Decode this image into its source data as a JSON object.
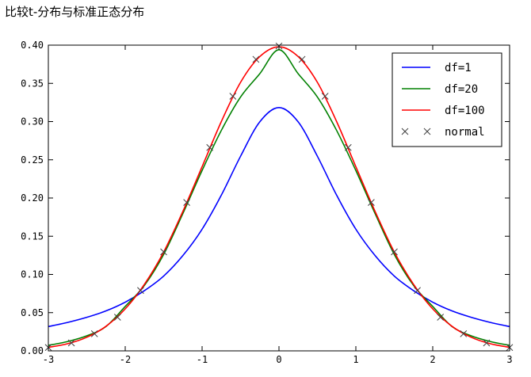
{
  "chart_data": {
    "type": "line",
    "title": "比较t-分布与标准正态分布",
    "xlabel": "",
    "ylabel": "",
    "xlim": [
      -3,
      3
    ],
    "ylim": [
      0,
      0.4
    ],
    "grid": false,
    "legend": "top-right",
    "xticks": [
      "-3",
      "-2",
      "-1",
      "0",
      "1",
      "2",
      "3"
    ],
    "yticks": [
      "0.00",
      "0.05",
      "0.10",
      "0.15",
      "0.20",
      "0.25",
      "0.30",
      "0.35",
      "0.40"
    ],
    "x": [
      -3.0,
      -2.75,
      -2.5,
      -2.25,
      -2.0,
      -1.75,
      -1.5,
      -1.25,
      -1.0,
      -0.75,
      -0.5,
      -0.25,
      0.0,
      0.25,
      0.5,
      0.75,
      1.0,
      1.25,
      1.5,
      1.75,
      2.0,
      2.25,
      2.5,
      2.75,
      3.0
    ],
    "series": [
      {
        "name": "df=1",
        "color": "#0000ff",
        "style": "line",
        "values": [
          0.0318,
          0.0372,
          0.0439,
          0.0523,
          0.0637,
          0.0788,
          0.0979,
          0.1247,
          0.1592,
          0.2037,
          0.2546,
          0.2996,
          0.3183,
          0.2996,
          0.2546,
          0.2037,
          0.1592,
          0.1247,
          0.0979,
          0.0788,
          0.0637,
          0.0523,
          0.0439,
          0.0372,
          0.0318
        ]
      },
      {
        "name": "df=20",
        "color": "#008000",
        "style": "line",
        "values": [
          0.0072,
          0.0122,
          0.0197,
          0.0319,
          0.0581,
          0.0857,
          0.1262,
          0.1797,
          0.236,
          0.2884,
          0.3321,
          0.3626,
          0.394,
          0.3626,
          0.3321,
          0.2884,
          0.236,
          0.1797,
          0.1262,
          0.0857,
          0.0581,
          0.0319,
          0.0197,
          0.0122,
          0.0072
        ]
      },
      {
        "name": "df=100",
        "color": "#ff0000",
        "style": "line",
        "values": [
          0.0046,
          0.0093,
          0.0178,
          0.0322,
          0.0549,
          0.0871,
          0.1293,
          0.1825,
          0.241,
          0.3,
          0.3513,
          0.385,
          0.3979,
          0.385,
          0.3513,
          0.3,
          0.241,
          0.1825,
          0.1293,
          0.0871,
          0.0549,
          0.0322,
          0.0178,
          0.0093,
          0.0046
        ]
      },
      {
        "name": "normal",
        "color": "#404040",
        "style": "marker-x",
        "x": [
          -3.0,
          -2.7,
          -2.4,
          -2.1,
          -1.8,
          -1.5,
          -1.2,
          -0.9,
          -0.6,
          -0.3,
          0.0,
          0.3,
          0.6,
          0.9,
          1.2,
          1.5,
          1.8,
          2.1,
          2.4,
          2.7,
          3.0
        ],
        "values": [
          0.0044,
          0.0104,
          0.0224,
          0.044,
          0.079,
          0.1295,
          0.1942,
          0.2661,
          0.3332,
          0.3814,
          0.3989,
          0.3814,
          0.3332,
          0.2661,
          0.1942,
          0.1295,
          0.079,
          0.044,
          0.0224,
          0.0104,
          0.0044
        ]
      }
    ]
  }
}
